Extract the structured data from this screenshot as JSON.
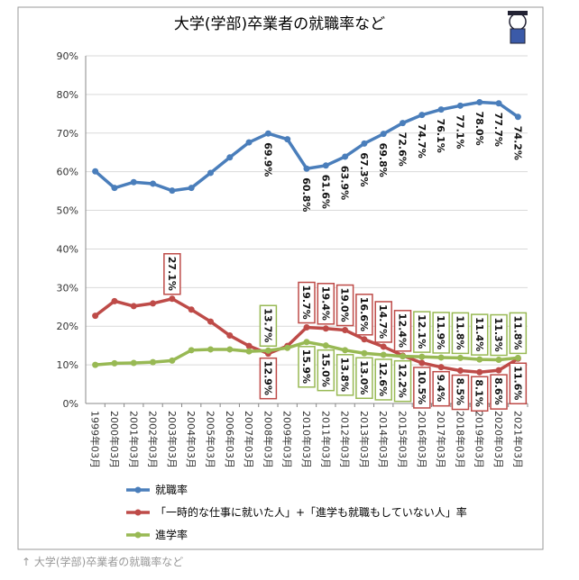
{
  "chart_data": {
    "type": "line",
    "title": "大学(学部)卒業者の就職率など",
    "caption": "↑ 大学(学部)卒業者の就職率など",
    "categories": [
      "1999年03月",
      "2000年03月",
      "2001年03月",
      "2002年03月",
      "2003年03月",
      "2004年03月",
      "2005年03月",
      "2006年03月",
      "2007年03月",
      "2008年03月",
      "2009年03月",
      "2010年03月",
      "2011年03月",
      "2012年03月",
      "2013年03月",
      "2014年03月",
      "2015年03月",
      "2016年03月",
      "2017年03月",
      "2018年03月",
      "2019年03月",
      "2020年03月",
      "2021年03月"
    ],
    "series": [
      {
        "name": "就職率",
        "color": "#4a7ebb",
        "values": [
          60.1,
          55.8,
          57.3,
          56.9,
          55.1,
          55.8,
          59.7,
          63.7,
          67.6,
          69.9,
          68.4,
          60.8,
          61.6,
          63.9,
          67.3,
          69.8,
          72.6,
          74.7,
          76.1,
          77.1,
          78.0,
          77.7,
          74.2
        ],
        "value_labels": [
          null,
          null,
          null,
          null,
          null,
          null,
          null,
          null,
          null,
          "69.9%",
          null,
          "60.8%",
          "61.6%",
          "63.9%",
          "67.3%",
          "69.8%",
          "72.6%",
          "74.7%",
          "76.1%",
          "77.1%",
          "78.0%",
          "77.7%",
          "74.2%"
        ]
      },
      {
        "name": "「一時的な仕事に就いた人」+「進学も就職もしていない人」率",
        "color": "#be4b48",
        "values": [
          22.7,
          26.5,
          25.2,
          25.9,
          27.1,
          24.3,
          21.2,
          17.6,
          14.9,
          12.9,
          14.9,
          19.7,
          19.4,
          19.0,
          16.6,
          14.7,
          12.4,
          10.5,
          9.4,
          8.5,
          8.1,
          8.6,
          11.6
        ],
        "value_labels": [
          null,
          null,
          null,
          null,
          "27.1%",
          null,
          null,
          null,
          null,
          "12.9%",
          null,
          "19.7%",
          "19.4%",
          "19.0%",
          "16.6%",
          "14.7%",
          "12.4%",
          "10.5%",
          "9.4%",
          "8.5%",
          "8.1%",
          "8.6%",
          "11.6%"
        ]
      },
      {
        "name": "進学率",
        "color": "#98b954",
        "values": [
          10.0,
          10.4,
          10.5,
          10.7,
          11.1,
          13.8,
          14.0,
          14.0,
          13.5,
          13.7,
          14.4,
          15.9,
          15.0,
          13.8,
          13.0,
          12.6,
          12.2,
          12.1,
          11.9,
          11.8,
          11.4,
          11.3,
          11.8
        ],
        "value_labels": [
          null,
          null,
          null,
          null,
          null,
          null,
          null,
          null,
          null,
          "13.7%",
          null,
          "15.9%",
          "15.0%",
          "13.8%",
          "13.0%",
          "12.6%",
          "12.2%",
          "12.1%",
          "11.9%",
          "11.8%",
          "11.4%",
          "11.3%",
          "11.8%"
        ]
      }
    ],
    "ylim": [
      0,
      90
    ],
    "yticks": [
      {
        "value": 0,
        "label": "0%"
      },
      {
        "value": 10,
        "label": "10%"
      },
      {
        "value": 20,
        "label": "20%"
      },
      {
        "value": 30,
        "label": "30%"
      },
      {
        "value": 40,
        "label": "40%"
      },
      {
        "value": 50,
        "label": "50%"
      },
      {
        "value": 60,
        "label": "60%"
      },
      {
        "value": 70,
        "label": "70%"
      },
      {
        "value": 80,
        "label": "80%"
      },
      {
        "value": 90,
        "label": "90%"
      }
    ],
    "grid": true
  }
}
